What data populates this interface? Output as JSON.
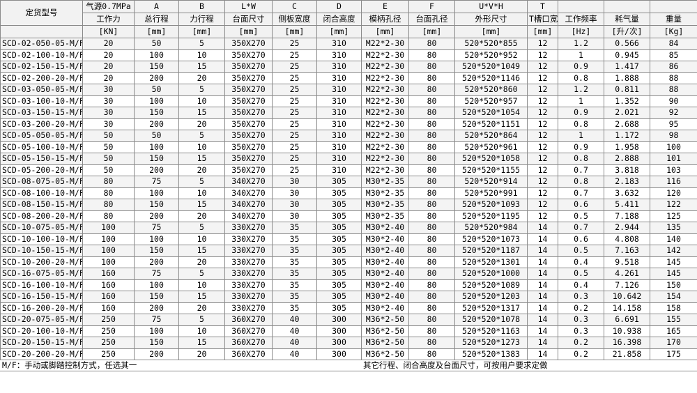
{
  "table": {
    "columns": [
      {
        "name": "定货型号"
      },
      {
        "top": "气源0.7MPa",
        "name": "工作力",
        "unit": "[KN]"
      },
      {
        "top": "A",
        "name": "总行程",
        "unit": "[mm]"
      },
      {
        "top": "B",
        "name": "力行程",
        "unit": "[mm]"
      },
      {
        "top": "L*W",
        "name": "台面尺寸",
        "unit": "[mm]"
      },
      {
        "top": "C",
        "name": "侧板宽度",
        "unit": "[mm]"
      },
      {
        "top": "D",
        "name": "闭合高度",
        "unit": "[mm]"
      },
      {
        "top": "E",
        "name": "模柄孔径",
        "unit": "[mm]"
      },
      {
        "top": "F",
        "name": "台面孔径",
        "unit": "[mm]"
      },
      {
        "top": "U*V*H",
        "name": "外形尺寸",
        "unit": "[mm]"
      },
      {
        "top": "T",
        "name": "T槽口宽",
        "unit": "[mm]"
      },
      {
        "name": "工作频率",
        "unit": "[Hz]"
      },
      {
        "name": "耗气量",
        "unit": "[升/次]"
      },
      {
        "name": "重量",
        "unit": "[Kg]"
      }
    ],
    "rows": [
      [
        "SCD-02-050-05-M/F",
        "20",
        "50",
        "5",
        "350X270",
        "25",
        "310",
        "M22*2-30",
        "80",
        "520*520*855",
        "12",
        "1.2",
        "0.566",
        "84"
      ],
      [
        "SCD-02-100-10-M/F",
        "20",
        "100",
        "10",
        "350X270",
        "25",
        "310",
        "M22*2-30",
        "80",
        "520*520*952",
        "12",
        "1",
        "0.945",
        "85"
      ],
      [
        "SCD-02-150-15-M/F",
        "20",
        "150",
        "15",
        "350X270",
        "25",
        "310",
        "M22*2-30",
        "80",
        "520*520*1049",
        "12",
        "0.9",
        "1.417",
        "86"
      ],
      [
        "SCD-02-200-20-M/F",
        "20",
        "200",
        "20",
        "350X270",
        "25",
        "310",
        "M22*2-30",
        "80",
        "520*520*1146",
        "12",
        "0.8",
        "1.888",
        "88"
      ],
      [
        "SCD-03-050-05-M/F",
        "30",
        "50",
        "5",
        "350X270",
        "25",
        "310",
        "M22*2-30",
        "80",
        "520*520*860",
        "12",
        "1.2",
        "0.811",
        "88"
      ],
      [
        "SCD-03-100-10-M/F",
        "30",
        "100",
        "10",
        "350X270",
        "25",
        "310",
        "M22*2-30",
        "80",
        "520*520*957",
        "12",
        "1",
        "1.352",
        "90"
      ],
      [
        "SCD-03-150-15-M/F",
        "30",
        "150",
        "15",
        "350X270",
        "25",
        "310",
        "M22*2-30",
        "80",
        "520*520*1054",
        "12",
        "0.9",
        "2.021",
        "92"
      ],
      [
        "SCD-03-200-20-M/F",
        "30",
        "200",
        "20",
        "350X270",
        "25",
        "310",
        "M22*2-30",
        "80",
        "520*520*1151",
        "12",
        "0.8",
        "2.688",
        "95"
      ],
      [
        "SCD-05-050-05-M/F",
        "50",
        "50",
        "5",
        "350X270",
        "25",
        "310",
        "M22*2-30",
        "80",
        "520*520*864",
        "12",
        "1",
        "1.172",
        "98"
      ],
      [
        "SCD-05-100-10-M/F",
        "50",
        "100",
        "10",
        "350X270",
        "25",
        "310",
        "M22*2-30",
        "80",
        "520*520*961",
        "12",
        "0.9",
        "1.958",
        "100"
      ],
      [
        "SCD-05-150-15-M/F",
        "50",
        "150",
        "15",
        "350X270",
        "25",
        "310",
        "M22*2-30",
        "80",
        "520*520*1058",
        "12",
        "0.8",
        "2.888",
        "101"
      ],
      [
        "SCD-05-200-20-M/F",
        "50",
        "200",
        "20",
        "350X270",
        "25",
        "310",
        "M22*2-30",
        "80",
        "520*520*1155",
        "12",
        "0.7",
        "3.818",
        "103"
      ],
      [
        "SCD-08-075-05-M/F",
        "80",
        "75",
        "5",
        "340X270",
        "30",
        "305",
        "M30*2-35",
        "80",
        "520*520*914",
        "12",
        "0.8",
        "2.183",
        "116"
      ],
      [
        "SCD-08-100-10-M/F",
        "80",
        "100",
        "10",
        "340X270",
        "30",
        "305",
        "M30*2-35",
        "80",
        "520*520*991",
        "12",
        "0.7",
        "3.632",
        "120"
      ],
      [
        "SCD-08-150-15-M/F",
        "80",
        "150",
        "15",
        "340X270",
        "30",
        "305",
        "M30*2-35",
        "80",
        "520*520*1093",
        "12",
        "0.6",
        "5.411",
        "122"
      ],
      [
        "SCD-08-200-20-M/F",
        "80",
        "200",
        "20",
        "340X270",
        "30",
        "305",
        "M30*2-35",
        "80",
        "520*520*1195",
        "12",
        "0.5",
        "7.188",
        "125"
      ],
      [
        "SCD-10-075-05-M/F",
        "100",
        "75",
        "5",
        "330X270",
        "35",
        "305",
        "M30*2-40",
        "80",
        "520*520*984",
        "14",
        "0.7",
        "2.944",
        "135"
      ],
      [
        "SCD-10-100-10-M/F",
        "100",
        "100",
        "10",
        "330X270",
        "35",
        "305",
        "M30*2-40",
        "80",
        "520*520*1073",
        "14",
        "0.6",
        "4.808",
        "140"
      ],
      [
        "SCD-10-150-15-M/F",
        "100",
        "150",
        "15",
        "330X270",
        "35",
        "305",
        "M30*2-40",
        "80",
        "520*520*1187",
        "14",
        "0.5",
        "7.163",
        "142"
      ],
      [
        "SCD-10-200-20-M/F",
        "100",
        "200",
        "20",
        "330X270",
        "35",
        "305",
        "M30*2-40",
        "80",
        "520*520*1301",
        "14",
        "0.4",
        "9.518",
        "145"
      ],
      [
        "SCD-16-075-05-M/F",
        "160",
        "75",
        "5",
        "330X270",
        "35",
        "305",
        "M30*2-40",
        "80",
        "520*520*1000",
        "14",
        "0.5",
        "4.261",
        "145"
      ],
      [
        "SCD-16-100-10-M/F",
        "160",
        "100",
        "10",
        "330X270",
        "35",
        "305",
        "M30*2-40",
        "80",
        "520*520*1089",
        "14",
        "0.4",
        "7.126",
        "150"
      ],
      [
        "SCD-16-150-15-M/F",
        "160",
        "150",
        "15",
        "330X270",
        "35",
        "305",
        "M30*2-40",
        "80",
        "520*520*1203",
        "14",
        "0.3",
        "10.642",
        "154"
      ],
      [
        "SCD-16-200-20-M/F",
        "160",
        "200",
        "20",
        "330X270",
        "35",
        "305",
        "M30*2-40",
        "80",
        "520*520*1317",
        "14",
        "0.2",
        "14.158",
        "158"
      ],
      [
        "SCD-20-075-05-M/F",
        "250",
        "75",
        "5",
        "360X270",
        "40",
        "300",
        "M36*2-50",
        "80",
        "520*520*1078",
        "14",
        "0.3",
        "6.691",
        "155"
      ],
      [
        "SCD-20-100-10-M/F",
        "250",
        "100",
        "10",
        "360X270",
        "40",
        "300",
        "M36*2-50",
        "80",
        "520*520*1163",
        "14",
        "0.3",
        "10.938",
        "165"
      ],
      [
        "SCD-20-150-15-M/F",
        "250",
        "150",
        "15",
        "360X270",
        "40",
        "300",
        "M36*2-50",
        "80",
        "520*520*1273",
        "14",
        "0.2",
        "16.398",
        "170"
      ],
      [
        "SCD-20-200-20-M/F",
        "250",
        "200",
        "20",
        "360X270",
        "40",
        "300",
        "M36*2-50",
        "80",
        "520*520*1383",
        "14",
        "0.2",
        "21.858",
        "175"
      ]
    ]
  },
  "footer": {
    "left": "M/F：手动或脚踏控制方式，任选其一",
    "right": "其它行程、闭合高度及台面尺寸，可按用户要求定做"
  }
}
